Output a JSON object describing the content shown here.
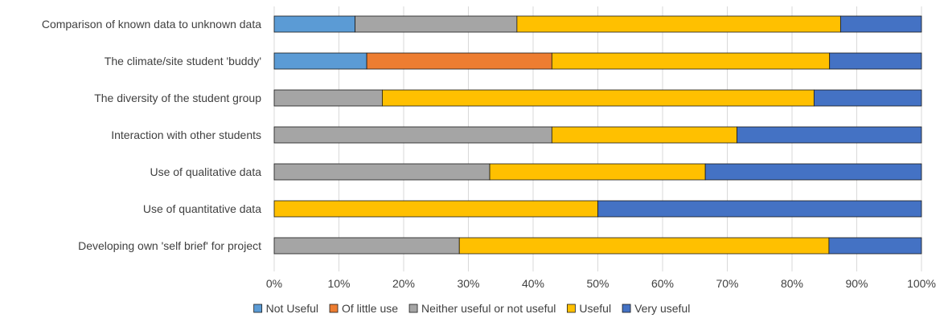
{
  "chart_data": {
    "type": "bar",
    "orientation": "horizontal",
    "stacked": "percent",
    "title": "",
    "xlabel": "",
    "ylabel": "",
    "xlim": [
      0,
      100
    ],
    "grid": true,
    "legend_position": "bottom",
    "categories": [
      "Comparison of known data to unknown data",
      "The climate/site student 'buddy'",
      "The diversity of the student group",
      "Interaction with other students",
      "Use of qualitative data",
      "Use of quantitative data",
      "Developing own 'self brief' for project"
    ],
    "tick_labels": [
      "0%",
      "10%",
      "20%",
      "30%",
      "40%",
      "50%",
      "60%",
      "70%",
      "80%",
      "90%",
      "100%"
    ],
    "series": [
      {
        "name": "Not Useful",
        "color": "#5B9BD5",
        "values": [
          12.5,
          14.3,
          0,
          0,
          0,
          0,
          0
        ]
      },
      {
        "name": "Of little use",
        "color": "#ED7D31",
        "values": [
          0,
          28.6,
          0,
          0,
          0,
          0,
          0
        ]
      },
      {
        "name": "Neither useful or not useful",
        "color": "#A5A5A5",
        "values": [
          25,
          0,
          16.7,
          42.9,
          33.3,
          0,
          28.6
        ]
      },
      {
        "name": "Useful",
        "color": "#FFC000",
        "values": [
          50,
          42.9,
          66.7,
          28.6,
          33.3,
          50,
          57.1
        ]
      },
      {
        "name": "Very useful",
        "color": "#4472C4",
        "values": [
          12.5,
          14.2,
          16.6,
          28.5,
          33.4,
          50,
          14.3
        ]
      }
    ]
  }
}
